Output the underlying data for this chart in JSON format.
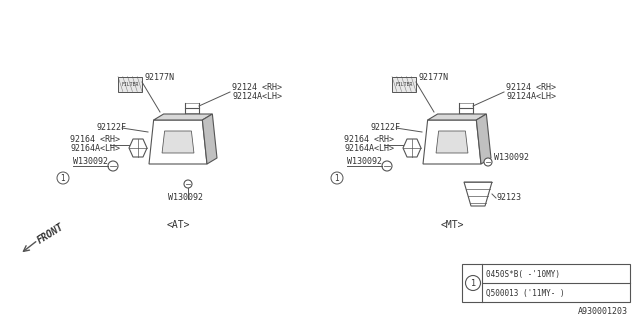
{
  "bg_color": "#ffffff",
  "line_color": "#555555",
  "text_color": "#333333",
  "title": "A930001203",
  "at_label": "<AT>",
  "mt_label": "<MT>",
  "front_label": "FRONT",
  "legend_line1": "0450S*B( -'10MY)",
  "legend_line2": "Q500013 ('11MY- )",
  "parts": {
    "92177N": "92177N",
    "92124RH": "92124 <RH>",
    "92124ALH": "92124A<LH>",
    "92122F": "92122F",
    "92164RH": "92164 <RH>",
    "92164ALH": "92164A<LH>",
    "W130092": "W130092",
    "92123": "92123"
  }
}
